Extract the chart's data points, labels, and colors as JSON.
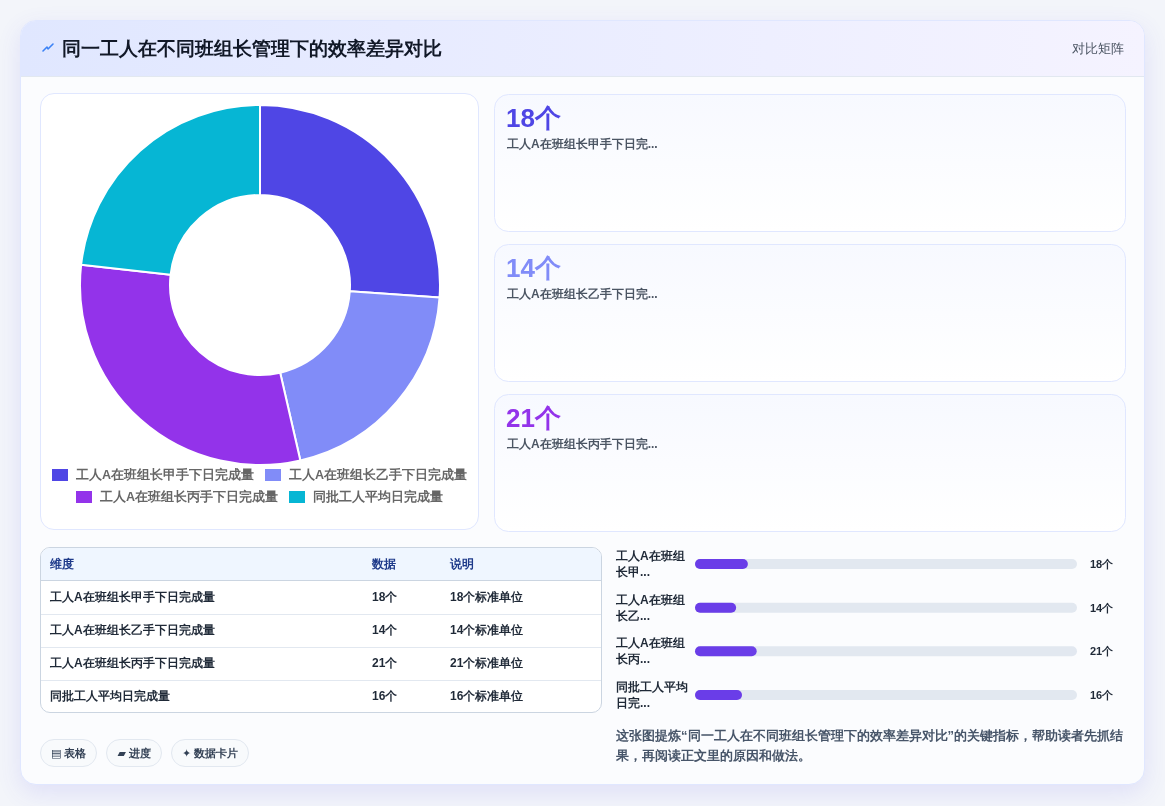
{
  "chart_data": [
    {
      "type": "other",
      "title": "同一工人在不同班组长管理下的效率差异对比",
      "subtitle": "对比矩阵"
    },
    {
      "type": "donut",
      "categories": [
        "工人A在班组长甲手下日完成量",
        "工人A在班组长乙手下日完成量",
        "工人A在班组长丙手下日完成量",
        "同批工人平均日完成量"
      ],
      "values": [
        26.1,
        20.3,
        30.4,
        23.2
      ],
      "colors": [
        "#4f46e5",
        "#818cf8",
        "#9333ea",
        "#06b6d4"
      ],
      "legend": "bottom"
    },
    {
      "type": "other",
      "categories": [
        "工人A在班组长甲手下日完...",
        "工人A在班组长乙手下日完...",
        "工人A在班组长丙手下日完..."
      ],
      "values": [
        18,
        14,
        21
      ],
      "value_labels": [
        "18个",
        "14个",
        "21个"
      ],
      "colors": [
        "#4f46e5",
        "#818cf8",
        "#9333ea"
      ]
    },
    {
      "type": "other",
      "xlabel": "维度",
      "categories": [
        "数据",
        "说明"
      ],
      "y_categories": [
        "工人A在班组长甲手下日完成量",
        "工人A在班组长乙手下日完成量",
        "工人A在班组长丙手下日完成量",
        "同批工人平均日完成量"
      ],
      "cell_labels": [
        [
          "18个",
          "18个标准单位"
        ],
        [
          "14个",
          "14个标准单位"
        ],
        [
          "21个",
          "21个标准单位"
        ],
        [
          "16个",
          "16个标准单位"
        ]
      ]
    },
    {
      "type": "bar",
      "orientation": "horizontal",
      "categories": [
        "工人A在班组长甲...",
        "工人A在班组长乙...",
        "工人A在班组长丙...",
        "同批工人平均日完..."
      ],
      "values": [
        18,
        14,
        21,
        16
      ],
      "value_labels": [
        "18个",
        "14个",
        "21个",
        "16个"
      ],
      "color": "#6a3de8",
      "xlim": [
        0,
        130
      ],
      "tick_labels": "y"
    },
    {
      "type": "other",
      "categories": [
        "▤ 表格",
        "▰ 进度",
        "✦ 数据卡片"
      ],
      "annotations": [
        "这张图提炼“同一工人在不同班组长管理下的效率差异对比”的关键指标，帮助读者先抓结果，再阅读正文里的原因和做法。"
      ]
    }
  ]
}
